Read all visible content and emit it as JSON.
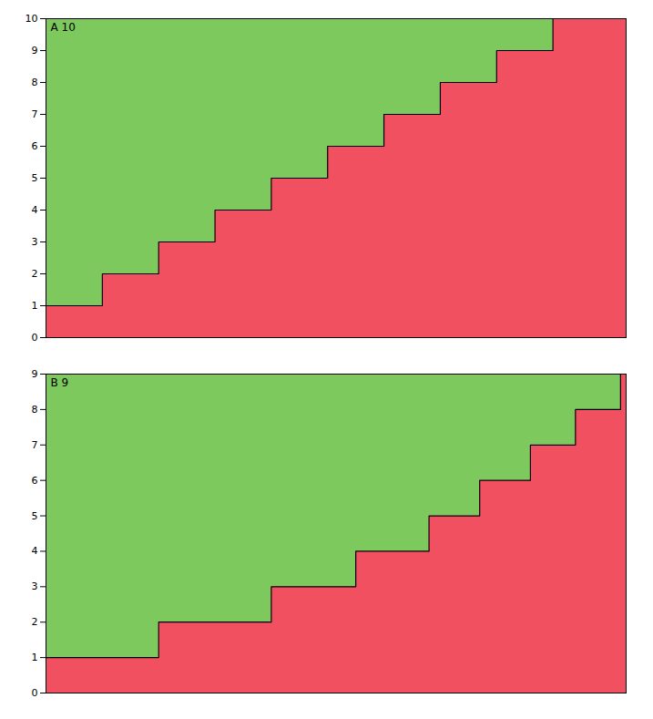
{
  "chart_data": [
    {
      "type": "step_area",
      "annotations": [
        "A 10"
      ],
      "xlim": [
        0,
        103
      ],
      "ylim": [
        0,
        10
      ],
      "yticks": [
        0,
        1,
        2,
        3,
        4,
        5,
        6,
        7,
        8,
        9,
        10
      ],
      "tick_labels": "y",
      "guideline": 10,
      "colors": [
        "#f05060",
        "#7dc95e",
        "#000000"
      ],
      "values": [
        1,
        1,
        1,
        1,
        1,
        1,
        1,
        1,
        1,
        1,
        2,
        2,
        2,
        2,
        2,
        2,
        2,
        2,
        2,
        2,
        3,
        3,
        3,
        3,
        3,
        3,
        3,
        3,
        3,
        3,
        4,
        4,
        4,
        4,
        4,
        4,
        4,
        4,
        4,
        4,
        5,
        5,
        5,
        5,
        5,
        5,
        5,
        5,
        5,
        5,
        6,
        6,
        6,
        6,
        6,
        6,
        6,
        6,
        6,
        6,
        7,
        7,
        7,
        7,
        7,
        7,
        7,
        7,
        7,
        7,
        8,
        8,
        8,
        8,
        8,
        8,
        8,
        8,
        8,
        8,
        9,
        9,
        9,
        9,
        9,
        9,
        9,
        9,
        9,
        9,
        10,
        10,
        10,
        10,
        10,
        10,
        10,
        10,
        10,
        10,
        10,
        10,
        10
      ]
    },
    {
      "type": "step_area",
      "annotations": [
        "B 9"
      ],
      "xlim": [
        0,
        103
      ],
      "ylim": [
        0,
        9
      ],
      "yticks": [
        0,
        1,
        2,
        3,
        4,
        5,
        6,
        7,
        8,
        9
      ],
      "tick_labels": "y",
      "guideline": 9,
      "colors": [
        "#f05060",
        "#7dc95e",
        "#000000"
      ],
      "values": [
        1,
        1,
        1,
        1,
        1,
        1,
        1,
        1,
        1,
        1,
        1,
        1,
        1,
        1,
        1,
        1,
        1,
        1,
        1,
        1,
        2,
        2,
        2,
        2,
        2,
        2,
        2,
        2,
        2,
        2,
        2,
        2,
        2,
        2,
        2,
        2,
        2,
        2,
        2,
        2,
        3,
        3,
        3,
        3,
        3,
        3,
        3,
        3,
        3,
        3,
        3,
        3,
        3,
        3,
        3,
        4,
        4,
        4,
        4,
        4,
        4,
        4,
        4,
        4,
        4,
        4,
        4,
        4,
        5,
        5,
        5,
        5,
        5,
        5,
        5,
        5,
        5,
        6,
        6,
        6,
        6,
        6,
        6,
        6,
        6,
        6,
        7,
        7,
        7,
        7,
        7,
        7,
        7,
        7,
        8,
        8,
        8,
        8,
        8,
        8,
        8,
        8,
        9
      ]
    }
  ]
}
